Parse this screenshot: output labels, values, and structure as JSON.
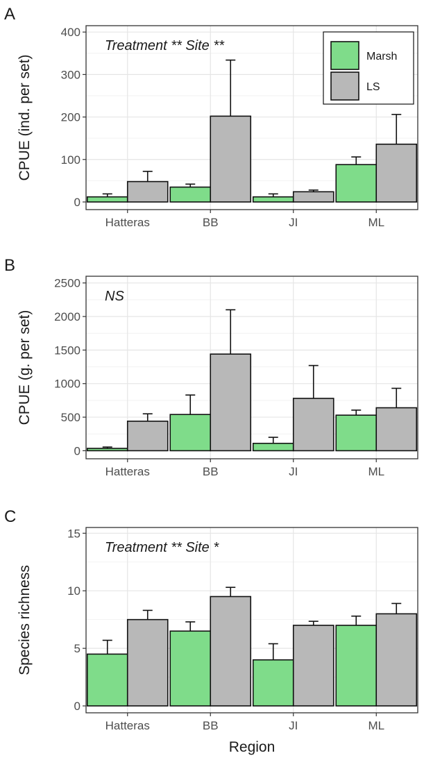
{
  "colors": {
    "marsh": "#7fdc8a",
    "ls": "#b8b8b8",
    "grid_major": "#e5e5e5",
    "grid_minor": "#f2f2f2",
    "axis": "#333333",
    "text": "#1a1a1a"
  },
  "chart_data": [
    {
      "type": "bar",
      "panel_label": "A",
      "annotation": "Treatment ** Site **",
      "ylabel": "CPUE (ind. per set)",
      "xlabel": "",
      "categories": [
        "Hatteras",
        "BB",
        "JI",
        "ML"
      ],
      "ylim": [
        -18,
        415
      ],
      "yticks": [
        0,
        100,
        200,
        300,
        400
      ],
      "grid": true,
      "legend": "top-right",
      "series": [
        {
          "name": "Marsh",
          "values": [
            12,
            35,
            12,
            88
          ],
          "errors": [
            7,
            7,
            7,
            18
          ]
        },
        {
          "name": "LS",
          "values": [
            48,
            202,
            24,
            136
          ],
          "errors": [
            24,
            132,
            4,
            70
          ]
        }
      ]
    },
    {
      "type": "bar",
      "panel_label": "B",
      "annotation": "NS",
      "ylabel": "CPUE (g. per set)",
      "xlabel": "",
      "categories": [
        "Hatteras",
        "BB",
        "JI",
        "ML"
      ],
      "ylim": [
        -120,
        2600
      ],
      "yticks": [
        0,
        500,
        1000,
        1500,
        2000,
        2500
      ],
      "grid": true,
      "series": [
        {
          "name": "Marsh",
          "values": [
            35,
            540,
            110,
            530
          ],
          "errors": [
            20,
            290,
            90,
            75
          ]
        },
        {
          "name": "LS",
          "values": [
            440,
            1440,
            780,
            640
          ],
          "errors": [
            110,
            660,
            490,
            290
          ]
        }
      ]
    },
    {
      "type": "bar",
      "panel_label": "C",
      "annotation": "Treatment ** Site *",
      "ylabel": "Species richness",
      "xlabel": "Region",
      "categories": [
        "Hatteras",
        "BB",
        "JI",
        "ML"
      ],
      "ylim": [
        -0.6,
        15.5
      ],
      "yticks": [
        0,
        5,
        10,
        15
      ],
      "grid": true,
      "series": [
        {
          "name": "Marsh",
          "values": [
            4.5,
            6.5,
            4.0,
            7.0
          ],
          "errors": [
            1.2,
            0.8,
            1.4,
            0.8
          ]
        },
        {
          "name": "LS",
          "values": [
            7.5,
            9.5,
            7.0,
            8.0
          ],
          "errors": [
            0.8,
            0.8,
            0.35,
            0.9
          ]
        }
      ]
    }
  ]
}
